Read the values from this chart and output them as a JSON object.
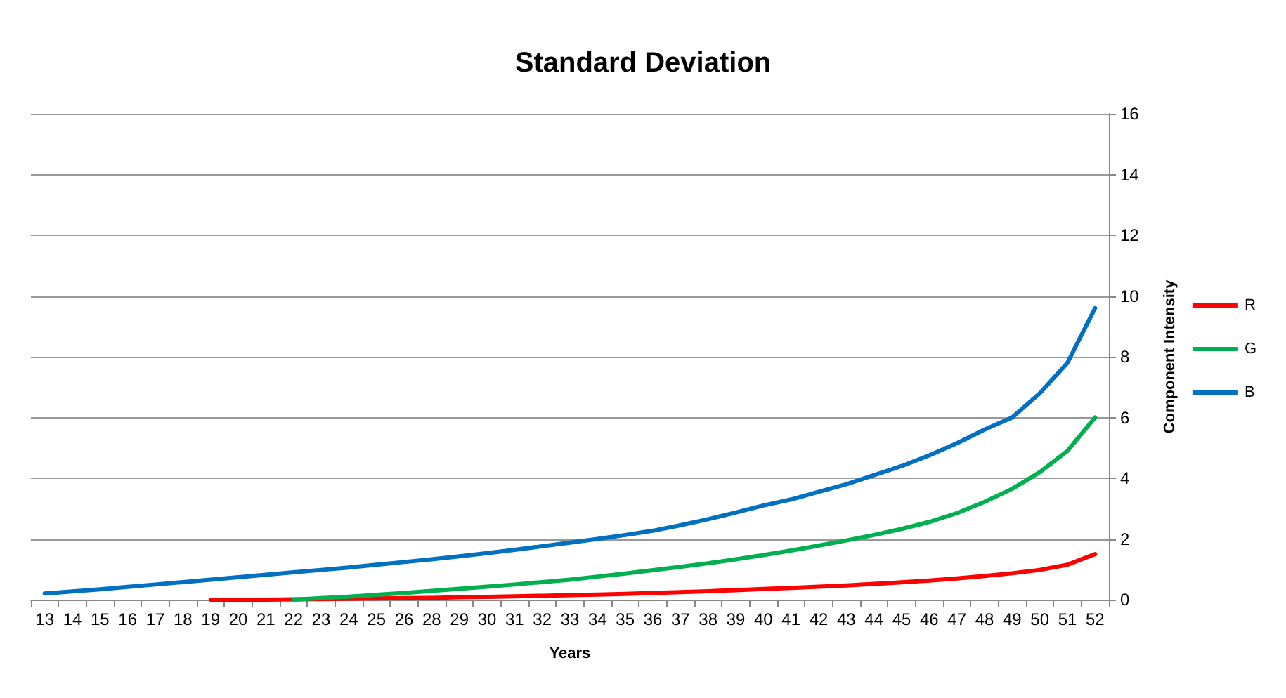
{
  "chart_data": {
    "type": "line",
    "title": "Standard Deviation",
    "xlabel": "Years",
    "ylabel": "Component Intensity",
    "categories": [
      "13",
      "14",
      "15",
      "16",
      "17",
      "18",
      "19",
      "20",
      "21",
      "22",
      "23",
      "24",
      "25",
      "26",
      "28",
      "29",
      "30",
      "31",
      "32",
      "33",
      "34",
      "35",
      "36",
      "37",
      "38",
      "39",
      "40",
      "41",
      "42",
      "43",
      "44",
      "45",
      "46",
      "47",
      "48",
      "49",
      "50",
      "51",
      "52"
    ],
    "series": [
      {
        "name": "R",
        "color": "#ff0000",
        "values": [
          null,
          null,
          null,
          null,
          null,
          null,
          0,
          0,
          0,
          0.01,
          0.02,
          0.03,
          0.04,
          0.05,
          0.06,
          0.08,
          0.09,
          0.11,
          0.13,
          0.15,
          0.17,
          0.19,
          0.22,
          0.25,
          0.28,
          0.31,
          0.35,
          0.39,
          0.43,
          0.47,
          0.52,
          0.57,
          0.63,
          0.7,
          0.78,
          0.87,
          0.98,
          1.15,
          1.5
        ]
      },
      {
        "name": "G",
        "color": "#00b050",
        "values": [
          null,
          null,
          null,
          null,
          null,
          null,
          null,
          null,
          null,
          0,
          0.05,
          0.1,
          0.16,
          0.22,
          0.29,
          0.36,
          0.43,
          0.5,
          0.58,
          0.66,
          0.76,
          0.86,
          0.97,
          1.08,
          1.2,
          1.33,
          1.47,
          1.62,
          1.78,
          1.95,
          2.13,
          2.33,
          2.56,
          2.85,
          3.22,
          3.65,
          4.2,
          4.9,
          6.0
        ]
      },
      {
        "name": "B",
        "color": "#0070c0",
        "values": [
          0.2,
          0.27,
          0.34,
          0.42,
          0.5,
          0.58,
          0.66,
          0.74,
          0.82,
          0.9,
          0.98,
          1.06,
          1.15,
          1.24,
          1.33,
          1.43,
          1.53,
          1.64,
          1.76,
          1.88,
          2.0,
          2.13,
          2.27,
          2.45,
          2.65,
          2.87,
          3.1,
          3.3,
          3.55,
          3.8,
          4.1,
          4.4,
          4.75,
          5.15,
          5.6,
          6.0,
          6.8,
          7.8,
          9.6
        ]
      }
    ],
    "ylim": [
      0,
      16
    ],
    "yticks": [
      0,
      2,
      4,
      6,
      8,
      10,
      12,
      14,
      16
    ],
    "grid": "y",
    "legend": "right",
    "marker": "none",
    "line_style": "solid"
  }
}
